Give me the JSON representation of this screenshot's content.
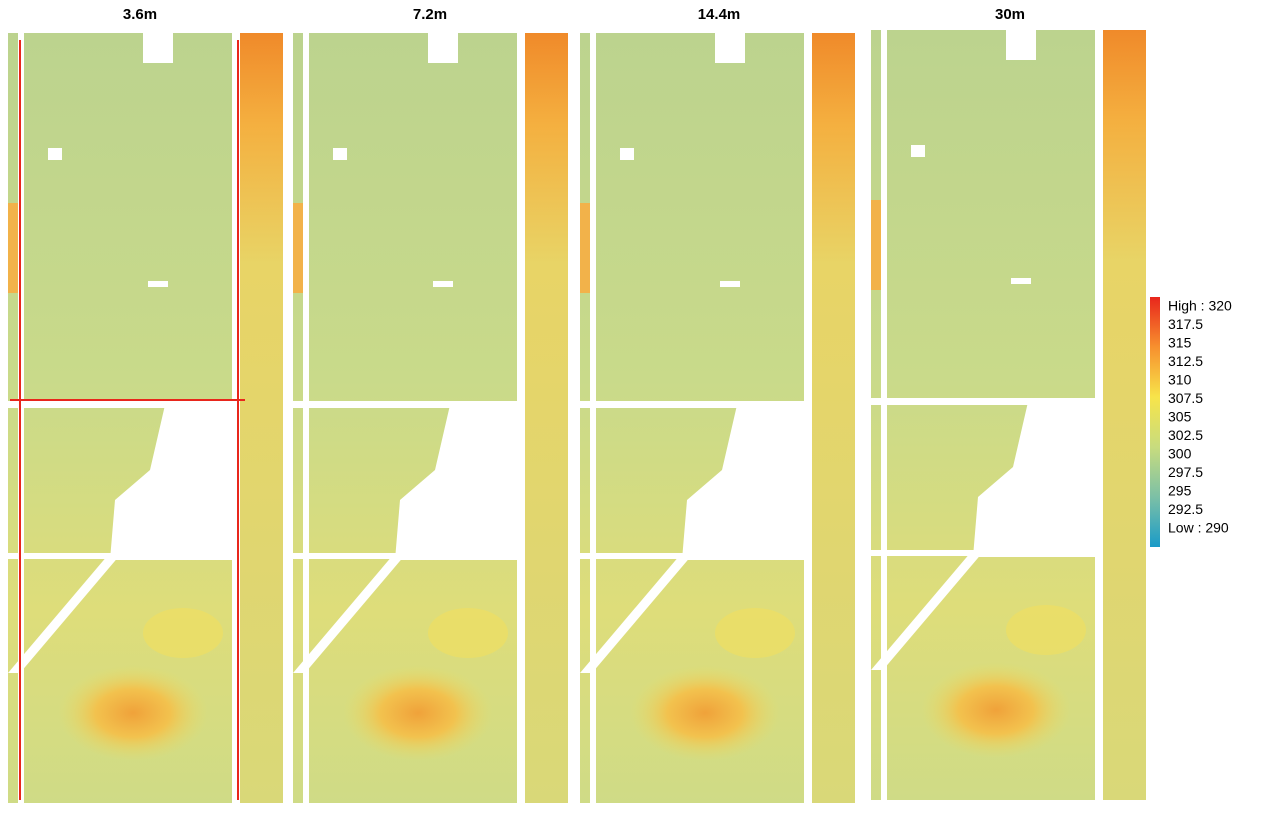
{
  "panels": [
    {
      "title": "3.6m"
    },
    {
      "title": "7.2m"
    },
    {
      "title": "14.4m"
    },
    {
      "title": "30m"
    }
  ],
  "legend": {
    "labels": [
      "High : 320",
      "317.5",
      "315",
      "312.5",
      "310",
      "307.5",
      "305",
      "302.5",
      "300",
      "297.5",
      "295",
      "292.5",
      "Low : 290"
    ]
  }
}
